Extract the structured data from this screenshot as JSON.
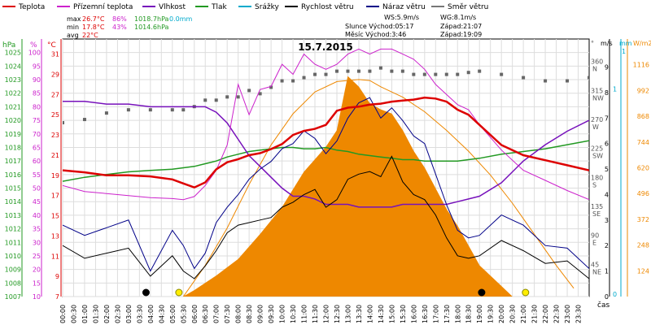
{
  "chart_data": {
    "type": "line",
    "title": "15.7.2015",
    "legend": [
      {
        "label": "Teplota",
        "color": "#dd0000"
      },
      {
        "label": "Přízemní teplota",
        "color": "#cc22cc"
      },
      {
        "label": "Vlhkost",
        "color": "#7711bb"
      },
      {
        "label": "Tlak",
        "color": "#229922"
      },
      {
        "label": "Srážky",
        "color": "#00aacc"
      },
      {
        "label": "Rychlost větru",
        "color": "#000000"
      },
      {
        "label": "Náraz větru",
        "color": "#000088"
      },
      {
        "label": "Směr větru",
        "color": "#777777"
      }
    ],
    "stats": {
      "row_max": [
        "max",
        "26.7°C",
        "86%",
        "1018.7hPa",
        "0.0mm"
      ],
      "row_min": [
        "min",
        "17.8°C",
        "43%",
        "1014.6hPa"
      ],
      "row_avg": [
        "avg",
        "22°C"
      ]
    },
    "info": {
      "ws": "WS:5.9m/s",
      "wg": "WG:8.1m/s",
      "sun": "Slunce Východ:05:17",
      "sun_set": "Západ:21:07",
      "moon": "Měsíc Východ:3:46",
      "moon_set": "Západ:19:09"
    },
    "axis_units": {
      "hpa": "hPa",
      "pct": "%",
      "degc": "°C",
      "deg": "°",
      "ms": "m/s",
      "mm": "mm",
      "wm2": "W/m2",
      "time": "čas"
    },
    "pressure_ticks": [
      1025,
      1024,
      1023,
      1022,
      1021,
      1020,
      1019,
      1018,
      1017,
      1016,
      1015,
      1014,
      1013,
      1012,
      1011,
      1010,
      1009,
      1008,
      1007
    ],
    "humidity_ticks": [
      100,
      95,
      90,
      85,
      80,
      75,
      70,
      65,
      60,
      55,
      50,
      45,
      40,
      35,
      30,
      25,
      20,
      15,
      10
    ],
    "temp_ticks": [
      31,
      29,
      27,
      25,
      23,
      21,
      19,
      17,
      15,
      13,
      11,
      9,
      7
    ],
    "direction_ticks": [
      {
        "deg": 360,
        "label": "N"
      },
      {
        "deg": 315,
        "label": "NW"
      },
      {
        "deg": 270,
        "label": "W"
      },
      {
        "deg": 225,
        "label": "SW"
      },
      {
        "deg": 180,
        "label": "S"
      },
      {
        "deg": 135,
        "label": "SE"
      },
      {
        "deg": 90,
        "label": "E"
      },
      {
        "deg": 45,
        "label": "NE"
      }
    ],
    "wind_ticks": [
      9,
      8,
      7,
      6,
      5,
      4,
      3,
      2,
      1,
      0
    ],
    "rain_ticks": [
      1,
      0
    ],
    "radiation_ticks": [
      1116,
      992,
      868,
      744,
      620,
      496,
      372,
      248,
      124
    ],
    "time_labels": [
      "00:00",
      "00:30",
      "01:00",
      "01:30",
      "02:00",
      "02:30",
      "03:00",
      "03:30",
      "04:00",
      "04:30",
      "05:00",
      "05:30",
      "06:00",
      "06:30",
      "07:00",
      "07:30",
      "08:00",
      "08:30",
      "09:00",
      "09:30",
      "10:00",
      "10:30",
      "11:00",
      "11:30",
      "12:00",
      "12:30",
      "13:00",
      "13:30",
      "14:00",
      "14:30",
      "15:00",
      "15:30",
      "16:00",
      "16:30",
      "17:00",
      "17:30",
      "18:00",
      "18:30",
      "19:00",
      "19:30",
      "20:00",
      "20:30",
      "21:00",
      "21:30",
      "22:00",
      "22:30",
      "23:00",
      "23:30"
    ],
    "x_hours": [
      0,
      1,
      2,
      3,
      4,
      5,
      5.5,
      6,
      6.5,
      7,
      7.5,
      8,
      8.5,
      9,
      9.5,
      10,
      10.5,
      11,
      11.5,
      12,
      12.5,
      13,
      13.5,
      14,
      14.5,
      15,
      15.5,
      16,
      16.5,
      17,
      17.5,
      18,
      18.5,
      19,
      20,
      21,
      22,
      23,
      24
    ],
    "temperature": [
      19.5,
      19.3,
      19.0,
      19.0,
      18.9,
      18.6,
      18.2,
      17.8,
      18.3,
      19.6,
      20.3,
      20.6,
      21.0,
      21.2,
      21.6,
      22.1,
      23.0,
      23.4,
      23.6,
      24.0,
      25.4,
      25.7,
      25.8,
      26.0,
      26.1,
      26.3,
      26.4,
      26.5,
      26.7,
      26.6,
      26.3,
      25.5,
      25.0,
      24.0,
      22.0,
      21.0,
      20.5,
      20.0,
      19.5
    ],
    "ground_temperature": [
      18.0,
      17.4,
      17.2,
      17.0,
      16.8,
      16.7,
      16.6,
      16.9,
      18.0,
      19.5,
      22.0,
      28.0,
      25.0,
      27.5,
      27.8,
      30.0,
      29.0,
      31.0,
      30.0,
      29.5,
      30.0,
      31.0,
      31.5,
      31.0,
      31.5,
      31.5,
      31.0,
      30.5,
      29.5,
      28.0,
      27.0,
      26.0,
      25.5,
      24.0,
      21.5,
      19.5,
      18.5,
      17.5,
      16.6
    ],
    "humidity": [
      82,
      82,
      81,
      81,
      80,
      80,
      80,
      80,
      80,
      78,
      74,
      68,
      62,
      58,
      54,
      50,
      47,
      47,
      46,
      44,
      44,
      44,
      43,
      43,
      43,
      43,
      44,
      44,
      44,
      44,
      44,
      45,
      46,
      47,
      52,
      60,
      66,
      71,
      75
    ],
    "pressure": [
      1015.5,
      1015.8,
      1016.0,
      1016.2,
      1016.3,
      1016.4,
      1016.5,
      1016.6,
      1016.8,
      1017.0,
      1017.3,
      1017.5,
      1017.7,
      1017.8,
      1017.9,
      1018.0,
      1018.0,
      1017.9,
      1017.9,
      1018.0,
      1017.8,
      1017.7,
      1017.5,
      1017.4,
      1017.3,
      1017.2,
      1017.1,
      1017.1,
      1017.0,
      1017.0,
      1017.0,
      1017.0,
      1017.1,
      1017.2,
      1017.5,
      1017.7,
      1017.9,
      1018.2,
      1018.5
    ],
    "wind_speed": [
      2.0,
      1.5,
      1.7,
      1.9,
      0.8,
      1.6,
      1.0,
      0.7,
      1.2,
      1.8,
      2.5,
      2.8,
      2.9,
      3.0,
      3.1,
      3.5,
      3.7,
      4.0,
      4.2,
      3.5,
      3.8,
      4.6,
      4.8,
      4.9,
      4.7,
      5.5,
      4.5,
      4.0,
      3.8,
      3.2,
      2.3,
      1.6,
      1.5,
      1.6,
      2.2,
      1.8,
      1.3,
      1.4,
      0.7
    ],
    "wind_gust": [
      2.8,
      2.4,
      2.7,
      3.0,
      1.0,
      2.6,
      2.0,
      1.1,
      1.7,
      2.9,
      3.5,
      4.0,
      4.6,
      5.0,
      5.3,
      5.8,
      6.0,
      6.5,
      6.2,
      5.6,
      6.1,
      7.0,
      7.6,
      7.8,
      7.0,
      7.4,
      6.9,
      6.3,
      6.0,
      4.8,
      3.6,
      2.6,
      2.3,
      2.4,
      3.2,
      2.8,
      2.0,
      1.9,
      1.1
    ],
    "wind_direction": [
      270,
      275,
      285,
      290,
      290,
      290,
      290,
      295,
      305,
      305,
      310,
      310,
      320,
      315,
      325,
      335,
      335,
      340,
      345,
      345,
      350,
      350,
      350,
      350,
      355,
      350,
      350,
      345,
      345,
      345,
      345,
      345,
      348,
      350,
      345,
      340,
      335,
      335,
      340
    ],
    "solar_radiation_hours": [
      5.5,
      6,
      7,
      8,
      9,
      10,
      11,
      12,
      12.5,
      13,
      13.5,
      14,
      14.5,
      15,
      15.5,
      16,
      16.5,
      17,
      17.5,
      18,
      19,
      20,
      20.5
    ],
    "solar_radiation": [
      0,
      30,
      100,
      180,
      300,
      430,
      600,
      720,
      800,
      1060,
      1010,
      930,
      900,
      880,
      800,
      700,
      620,
      520,
      420,
      340,
      150,
      50,
      0
    ],
    "clear_sky_radiation": [
      0,
      150,
      330,
      540,
      730,
      880,
      985,
      1035,
      1045,
      1040,
      1010,
      960,
      890,
      800,
      700,
      585,
      450,
      300,
      150,
      40
    ],
    "clear_sky_hours": [
      5.5,
      6.5,
      7.5,
      8.5,
      9.5,
      10.5,
      11.5,
      12.5,
      13.5,
      14,
      14.5,
      15.5,
      16.5,
      17.5,
      18.5,
      19.5,
      20.5,
      21.5,
      22.5,
      23.3
    ],
    "markers": [
      {
        "hour": 3.8,
        "symbol": "moonrise"
      },
      {
        "hour": 5.3,
        "symbol": "sunrise"
      },
      {
        "hour": 19.1,
        "symbol": "moonset"
      },
      {
        "hour": 21.1,
        "symbol": "sunset"
      }
    ]
  }
}
